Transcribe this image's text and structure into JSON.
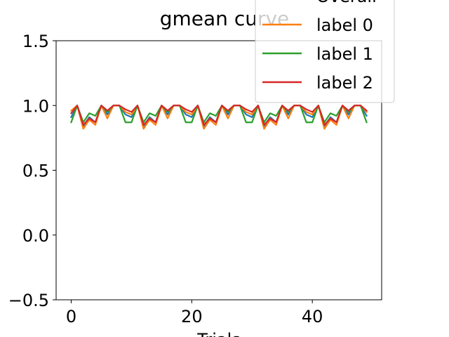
{
  "chart_data": {
    "type": "line",
    "title": "gmean curve",
    "xlabel": "Trials",
    "ylabel": "",
    "xlim": [
      -2.5,
      51.5
    ],
    "ylim": [
      -0.5,
      1.5
    ],
    "xticks": [
      0,
      20,
      40
    ],
    "yticks": [
      -0.5,
      0.0,
      0.5,
      1.0,
      1.5
    ],
    "xtick_labels": [
      "0",
      "20",
      "40"
    ],
    "ytick_labels": [
      "−0.5",
      "0.0",
      "0.5",
      "1.0",
      "1.5"
    ],
    "grid": false,
    "legend_position": "top-right",
    "x": [
      0,
      1,
      2,
      3,
      4,
      5,
      6,
      7,
      8,
      9,
      10,
      11,
      12,
      13,
      14,
      15,
      16,
      17,
      18,
      19,
      20,
      21,
      22,
      23,
      24,
      25,
      26,
      27,
      28,
      29,
      30,
      31,
      32,
      33,
      34,
      35,
      36,
      37,
      38,
      39,
      40,
      41,
      42,
      43,
      44,
      45,
      46,
      47,
      48,
      49
    ],
    "series": [
      {
        "name": "Overall",
        "color": "#1f77b4",
        "values": [
          0.91,
          1.0,
          0.84,
          0.91,
          0.87,
          1.0,
          0.93,
          1.0,
          1.0,
          0.93,
          0.91,
          1.0,
          0.84,
          0.91,
          0.87,
          1.0,
          0.93,
          1.0,
          1.0,
          0.93,
          0.91,
          1.0,
          0.84,
          0.91,
          0.87,
          1.0,
          0.93,
          1.0,
          1.0,
          0.93,
          0.91,
          1.0,
          0.84,
          0.91,
          0.87,
          1.0,
          0.93,
          1.0,
          1.0,
          0.93,
          0.91,
          1.0,
          0.84,
          0.91,
          0.87,
          1.0,
          0.93,
          1.0,
          1.0,
          0.92
        ]
      },
      {
        "name": "label 0",
        "color": "#ff7f0e",
        "values": [
          0.96,
          1.0,
          0.82,
          0.89,
          0.85,
          1.0,
          0.9,
          1.0,
          1.0,
          0.95,
          0.93,
          1.0,
          0.82,
          0.89,
          0.85,
          1.0,
          0.9,
          1.0,
          1.0,
          0.95,
          0.93,
          1.0,
          0.82,
          0.89,
          0.85,
          1.0,
          0.9,
          1.0,
          1.0,
          0.95,
          0.93,
          1.0,
          0.82,
          0.89,
          0.85,
          1.0,
          0.9,
          1.0,
          1.0,
          0.95,
          0.93,
          1.0,
          0.82,
          0.89,
          0.85,
          1.0,
          0.9,
          1.0,
          1.0,
          0.95
        ]
      },
      {
        "name": "label 1",
        "color": "#2ca02c",
        "values": [
          0.87,
          1.0,
          0.87,
          0.94,
          0.92,
          1.0,
          0.95,
          1.0,
          1.0,
          0.87,
          0.87,
          1.0,
          0.87,
          0.94,
          0.92,
          1.0,
          0.95,
          1.0,
          1.0,
          0.87,
          0.87,
          1.0,
          0.87,
          0.94,
          0.92,
          1.0,
          0.95,
          1.0,
          1.0,
          0.87,
          0.87,
          1.0,
          0.87,
          0.94,
          0.92,
          1.0,
          0.95,
          1.0,
          1.0,
          0.87,
          0.87,
          1.0,
          0.87,
          0.94,
          0.92,
          1.0,
          0.95,
          1.0,
          1.0,
          0.87
        ]
      },
      {
        "name": "label 2",
        "color": "#d62728",
        "values": [
          0.94,
          1.0,
          0.85,
          0.9,
          0.87,
          1.0,
          0.96,
          1.0,
          1.0,
          0.97,
          0.95,
          1.0,
          0.85,
          0.9,
          0.87,
          1.0,
          0.96,
          1.0,
          1.0,
          0.97,
          0.95,
          1.0,
          0.85,
          0.9,
          0.87,
          1.0,
          0.96,
          1.0,
          1.0,
          0.97,
          0.95,
          1.0,
          0.85,
          0.9,
          0.87,
          1.0,
          0.96,
          1.0,
          1.0,
          0.97,
          0.95,
          1.0,
          0.85,
          0.9,
          0.87,
          1.0,
          0.96,
          1.0,
          1.0,
          0.96
        ]
      }
    ]
  }
}
